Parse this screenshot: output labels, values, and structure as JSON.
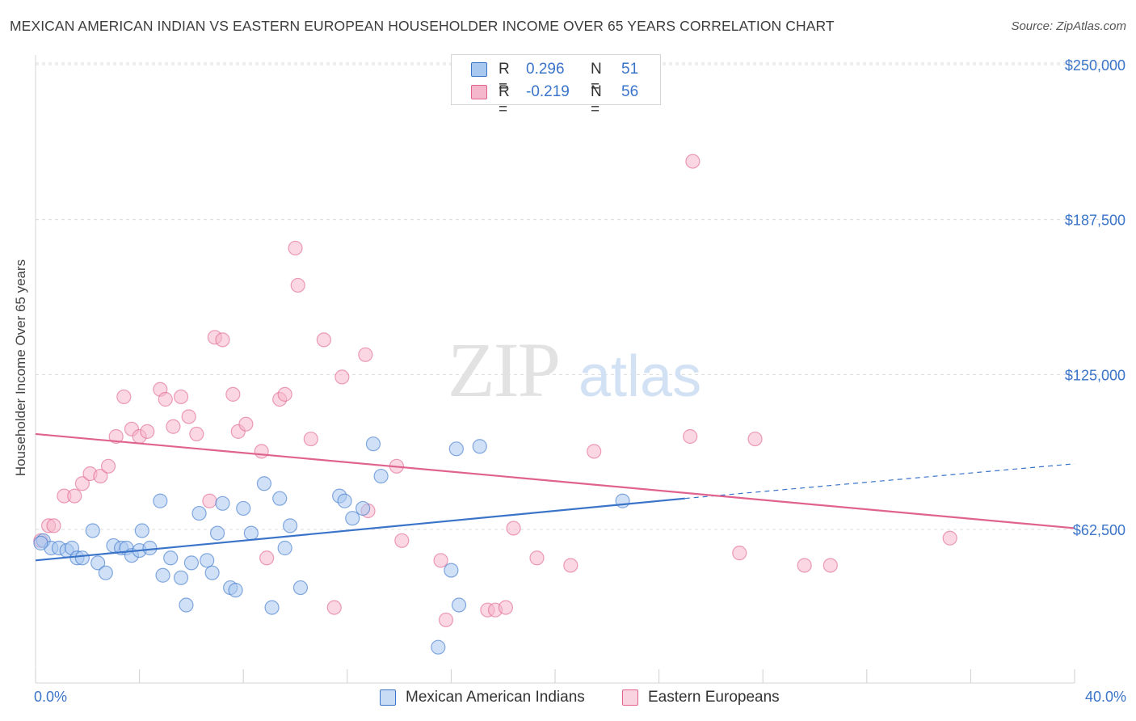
{
  "header": {
    "title": "MEXICAN AMERICAN INDIAN VS EASTERN EUROPEAN HOUSEHOLDER INCOME OVER 65 YEARS CORRELATION CHART",
    "source": "Source: ZipAtlas.com"
  },
  "legend_top": {
    "rows": [
      {
        "r_label": "R =",
        "r_value": "0.296",
        "n_label": "N =",
        "n_value": "51"
      },
      {
        "r_label": "R =",
        "r_value": "-0.219",
        "n_label": "N =",
        "n_value": "56"
      }
    ]
  },
  "legend_bottom": {
    "items": [
      "Mexican American Indians",
      "Eastern Europeans"
    ]
  },
  "axes": {
    "ylabel": "Householder Income Over 65 years",
    "x_min_label": "0.0%",
    "x_max_label": "40.0%"
  },
  "watermark": {
    "zip": "ZIP",
    "atlas": "atlas"
  },
  "colors": {
    "blue": "#3a74c9",
    "blue_fill": "#a9c8f0",
    "pink": "#e0628f",
    "pink_fill": "#f5b7cb",
    "axis_label": "#3a74c9"
  },
  "chart_data": {
    "type": "scatter",
    "title": "MEXICAN AMERICAN INDIAN VS EASTERN EUROPEAN HOUSEHOLDER INCOME OVER 65 YEARS CORRELATION CHART",
    "xlabel": "",
    "ylabel": "Householder Income Over 65 years",
    "xlim": [
      0,
      40
    ],
    "ylim": [
      5000,
      265000
    ],
    "x_unit": "%",
    "yticks": [
      62500,
      125000,
      187500,
      250000
    ],
    "ytick_labels": [
      "$62,500",
      "$125,000",
      "$187,500",
      "$250,000"
    ],
    "grid": true,
    "legend_placement": "top-center",
    "series": [
      {
        "name": "Mexican American Indians",
        "color": "#3a74c9",
        "r": 0.296,
        "n": 51,
        "trend": {
          "x": [
            0,
            25
          ],
          "y": [
            50000,
            75000
          ],
          "extended_x": [
            25,
            40
          ],
          "extended_y": [
            75000,
            89000
          ]
        },
        "points": [
          [
            0.3,
            58000
          ],
          [
            0.6,
            55000
          ],
          [
            0.9,
            55000
          ],
          [
            1.2,
            54000
          ],
          [
            1.4,
            55000
          ],
          [
            1.6,
            51000
          ],
          [
            1.8,
            51000
          ],
          [
            2.2,
            62000
          ],
          [
            2.4,
            49000
          ],
          [
            2.7,
            45000
          ],
          [
            3.0,
            56000
          ],
          [
            3.3,
            55000
          ],
          [
            3.5,
            55000
          ],
          [
            3.7,
            52000
          ],
          [
            4.0,
            54000
          ],
          [
            4.1,
            62000
          ],
          [
            4.4,
            55000
          ],
          [
            4.8,
            74000
          ],
          [
            4.9,
            44000
          ],
          [
            5.2,
            51000
          ],
          [
            5.6,
            43000
          ],
          [
            5.8,
            32000
          ],
          [
            6.0,
            49000
          ],
          [
            6.3,
            69000
          ],
          [
            6.6,
            50000
          ],
          [
            6.8,
            45000
          ],
          [
            7.0,
            61000
          ],
          [
            7.2,
            73000
          ],
          [
            7.5,
            39000
          ],
          [
            7.7,
            38000
          ],
          [
            8.0,
            71000
          ],
          [
            8.3,
            61000
          ],
          [
            8.8,
            81000
          ],
          [
            9.1,
            31000
          ],
          [
            9.4,
            75000
          ],
          [
            9.6,
            55000
          ],
          [
            9.8,
            64000
          ],
          [
            10.2,
            39000
          ],
          [
            11.7,
            76000
          ],
          [
            11.9,
            74000
          ],
          [
            12.2,
            67000
          ],
          [
            12.6,
            71000
          ],
          [
            13.0,
            97000
          ],
          [
            13.3,
            84000
          ],
          [
            16.0,
            46000
          ],
          [
            16.2,
            95000
          ],
          [
            16.3,
            32000
          ],
          [
            17.1,
            96000
          ],
          [
            15.5,
            15000
          ],
          [
            22.6,
            74000
          ],
          [
            0.2,
            57000
          ]
        ]
      },
      {
        "name": "Eastern Europeans",
        "color": "#e0628f",
        "r": -0.219,
        "n": 56,
        "trend": {
          "x": [
            0,
            40
          ],
          "y": [
            101000,
            63000
          ]
        },
        "points": [
          [
            0.2,
            58000
          ],
          [
            0.5,
            64000
          ],
          [
            0.7,
            64000
          ],
          [
            1.1,
            76000
          ],
          [
            1.5,
            76000
          ],
          [
            1.8,
            81000
          ],
          [
            2.1,
            85000
          ],
          [
            2.5,
            84000
          ],
          [
            2.8,
            88000
          ],
          [
            3.1,
            100000
          ],
          [
            3.4,
            116000
          ],
          [
            3.7,
            103000
          ],
          [
            4.0,
            100000
          ],
          [
            4.3,
            102000
          ],
          [
            4.8,
            119000
          ],
          [
            5.0,
            115000
          ],
          [
            5.3,
            104000
          ],
          [
            5.6,
            116000
          ],
          [
            5.9,
            108000
          ],
          [
            6.2,
            101000
          ],
          [
            6.7,
            74000
          ],
          [
            6.9,
            140000
          ],
          [
            7.2,
            139000
          ],
          [
            7.6,
            117000
          ],
          [
            7.8,
            102000
          ],
          [
            8.1,
            105000
          ],
          [
            8.7,
            94000
          ],
          [
            8.9,
            51000
          ],
          [
            9.4,
            115000
          ],
          [
            9.6,
            117000
          ],
          [
            10.0,
            176000
          ],
          [
            10.1,
            161000
          ],
          [
            10.6,
            99000
          ],
          [
            11.1,
            139000
          ],
          [
            11.5,
            31000
          ],
          [
            11.8,
            124000
          ],
          [
            12.7,
            133000
          ],
          [
            12.8,
            70000
          ],
          [
            13.9,
            88000
          ],
          [
            14.1,
            58000
          ],
          [
            15.6,
            50000
          ],
          [
            15.8,
            26000
          ],
          [
            17.4,
            30000
          ],
          [
            17.7,
            30000
          ],
          [
            18.1,
            31000
          ],
          [
            18.4,
            63000
          ],
          [
            19.3,
            51000
          ],
          [
            20.6,
            48000
          ],
          [
            21.5,
            94000
          ],
          [
            25.3,
            211000
          ],
          [
            25.2,
            100000
          ],
          [
            27.1,
            53000
          ],
          [
            27.7,
            99000
          ],
          [
            29.6,
            48000
          ],
          [
            30.6,
            48000
          ],
          [
            35.2,
            59000
          ]
        ]
      }
    ]
  }
}
